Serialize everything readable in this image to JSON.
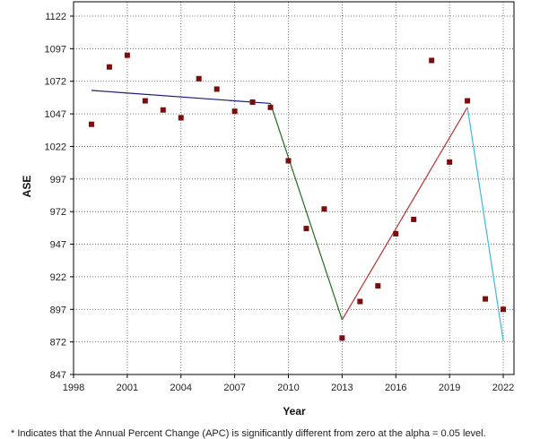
{
  "chart_data": {
    "type": "scatter",
    "title": "",
    "xlabel": "Year",
    "ylabel": "ASE",
    "xlim": [
      1998,
      2022.6
    ],
    "ylim": [
      847,
      1133
    ],
    "x_ticks": [
      1998,
      2001,
      2004,
      2007,
      2010,
      2013,
      2016,
      2019,
      2022
    ],
    "y_ticks": [
      847,
      872,
      897,
      922,
      947,
      972,
      997,
      1022,
      1047,
      1072,
      1097,
      1122
    ],
    "grid": true,
    "observed": {
      "color": "#7b0d0d",
      "x": [
        1999,
        2000,
        2001,
        2002,
        2003,
        2004,
        2005,
        2006,
        2007,
        2008,
        2009,
        2010,
        2011,
        2012,
        2013,
        2014,
        2015,
        2016,
        2017,
        2018,
        2019,
        2020,
        2021,
        2022
      ],
      "y": [
        1039,
        1083,
        1092,
        1057,
        1050,
        1044,
        1074,
        1066,
        1049,
        1056,
        1052,
        1011,
        959,
        974,
        875,
        903,
        915,
        955,
        966,
        1088,
        1010,
        1057,
        905,
        897
      ]
    },
    "segments": [
      {
        "color": "#1a1a80",
        "x": [
          1999,
          2009
        ],
        "y": [
          1065,
          1055
        ]
      },
      {
        "color": "#1f6e1f",
        "x": [
          2009,
          2013
        ],
        "y": [
          1055,
          889
        ]
      },
      {
        "color": "#c03030",
        "x": [
          2013,
          2020
        ],
        "y": [
          889,
          1052
        ]
      },
      {
        "color": "#3fb8d8",
        "x": [
          2020,
          2022
        ],
        "y": [
          1052,
          873
        ]
      }
    ]
  },
  "footnote": "* Indicates that the Annual Percent Change (APC) is significantly different from zero at the alpha = 0.05 level."
}
